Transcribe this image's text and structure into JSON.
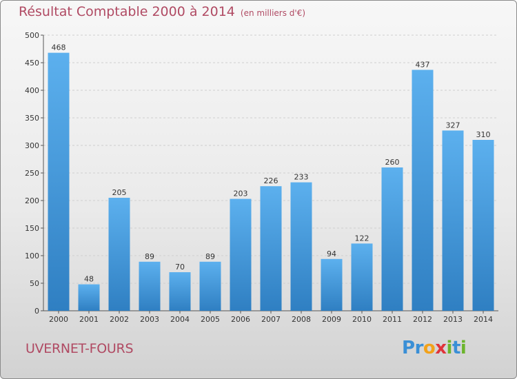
{
  "title": "Résultat Comptable 2000 à 2014",
  "subtitle": "(en milliers d'€)",
  "commune": "UVERNET-FOURS",
  "logo": {
    "letters": [
      {
        "ch": "P",
        "color": "#3a8fd6"
      },
      {
        "ch": "r",
        "color": "#3a8fd6"
      },
      {
        "ch": "o",
        "color": "#f2a21a"
      },
      {
        "ch": "x",
        "color": "#e0343a"
      },
      {
        "ch": "i",
        "color": "#6cb52d"
      },
      {
        "ch": "t",
        "color": "#3a8fd6"
      },
      {
        "ch": "i",
        "color": "#6cb52d"
      }
    ]
  },
  "colors": {
    "bar_top": "#5cb0ee",
    "bar_bottom": "#2f7fc2",
    "title": "#b04a63",
    "grid": "#cfcfcf"
  },
  "chart_data": {
    "type": "bar",
    "categories": [
      "2000",
      "2001",
      "2002",
      "2003",
      "2004",
      "2005",
      "2006",
      "2007",
      "2008",
      "2009",
      "2010",
      "2011",
      "2012",
      "2013",
      "2014"
    ],
    "values": [
      468,
      48,
      205,
      89,
      70,
      89,
      203,
      226,
      233,
      94,
      122,
      260,
      437,
      327,
      310
    ],
    "ylim": [
      0,
      500
    ],
    "yticks": [
      0,
      50,
      100,
      150,
      200,
      250,
      300,
      350,
      400,
      450,
      500
    ],
    "grid": true,
    "data_labels": true
  }
}
